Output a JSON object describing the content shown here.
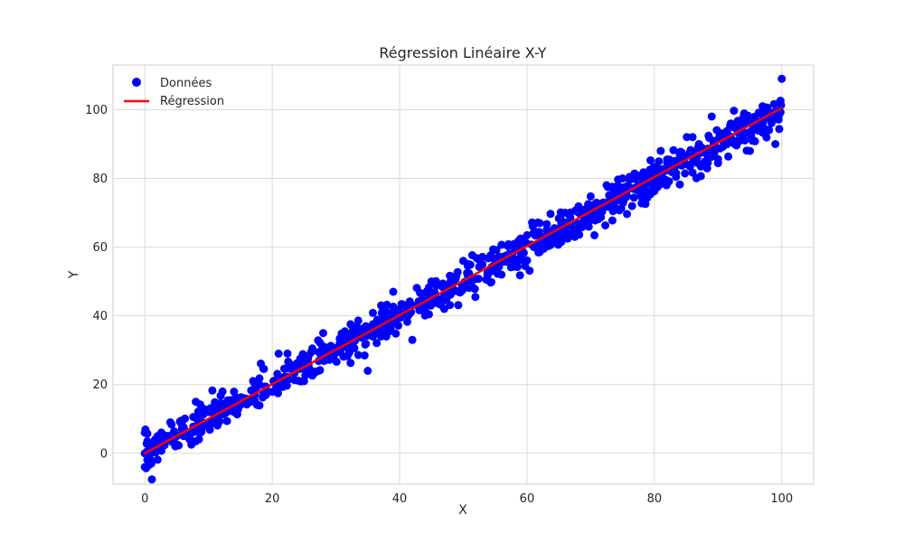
{
  "chart_data": {
    "type": "scatter",
    "title": "Régression Linéaire X-Y",
    "xlabel": "X",
    "ylabel": "Y",
    "xlim": [
      -5,
      105
    ],
    "ylim": [
      -9,
      113
    ],
    "xticks": [
      0,
      20,
      40,
      60,
      80,
      100
    ],
    "yticks": [
      0,
      20,
      40,
      60,
      80,
      100
    ],
    "grid": true,
    "legend_position": "top-left",
    "series": [
      {
        "name": "Données",
        "kind": "scatter",
        "color": "#0000ff",
        "point_count": 1000,
        "trend": {
          "slope": 1.0,
          "intercept": 0.0,
          "noise_sd": 2.5
        },
        "x": [
          0,
          0,
          0,
          1,
          2,
          4,
          8,
          10,
          15,
          18,
          21,
          25,
          28,
          31,
          35,
          36,
          39,
          42,
          45,
          48,
          50,
          53,
          56,
          58,
          62,
          64,
          66,
          69,
          72,
          75,
          78,
          81,
          84,
          87,
          89,
          92,
          95,
          97,
          99,
          100
        ],
        "y": [
          -4,
          0,
          6,
          -3,
          5,
          9,
          15,
          12,
          14,
          20,
          29,
          21,
          35,
          31,
          24,
          37,
          47,
          33,
          50,
          50,
          56,
          55,
          52,
          60,
          67,
          64,
          70,
          68,
          73,
          80,
          76,
          88,
          85,
          90,
          98,
          96,
          88,
          101,
          90,
          109
        ]
      },
      {
        "name": "Régression",
        "kind": "line",
        "color": "#ff0000",
        "x": [
          0,
          100
        ],
        "y": [
          0,
          100.5
        ]
      }
    ]
  }
}
